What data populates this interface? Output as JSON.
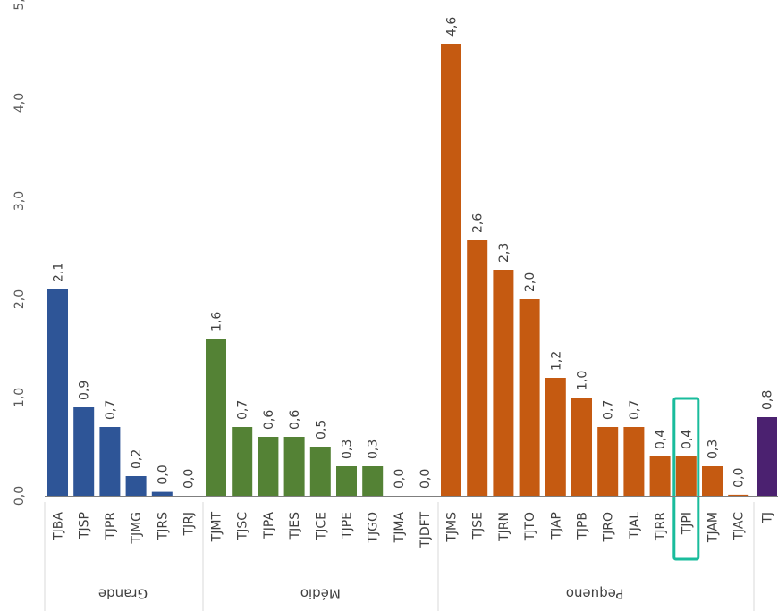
{
  "chart_data": {
    "type": "bar",
    "ylim": [
      0,
      5.0
    ],
    "yticks": [
      "0,0",
      "1,0",
      "2,0",
      "3,0",
      "4,0",
      "5,"
    ],
    "grid": false,
    "legend": "none",
    "colors": {
      "Grande": "#2e5597",
      "Médio": "#548235",
      "Pequeno": "#c55a11",
      "TJ": "#4b2170",
      "highlight": "#1abc9c",
      "tick": "#595959",
      "axis": "#7f7f7f"
    },
    "groups": [
      {
        "name": "Grande",
        "categories": [
          "TJBA",
          "TJSP",
          "TJPR",
          "TJMG",
          "TJRS",
          "TJRJ"
        ],
        "values": [
          2.1,
          0.9,
          0.7,
          0.2,
          0.04,
          0.0
        ],
        "labels": [
          "2,1",
          "0,9",
          "0,7",
          "0,2",
          "0,0",
          "0,0"
        ]
      },
      {
        "name": "Médio",
        "categories": [
          "TJMT",
          "TJSC",
          "TJPA",
          "TJES",
          "TJCE",
          "TJPE",
          "TJGO",
          "TJMA",
          "TJDFT"
        ],
        "values": [
          1.6,
          0.7,
          0.6,
          0.6,
          0.5,
          0.3,
          0.3,
          0.0,
          0.0
        ],
        "labels": [
          "1,6",
          "0,7",
          "0,6",
          "0,6",
          "0,5",
          "0,3",
          "0,3",
          "0,0",
          "0,0"
        ]
      },
      {
        "name": "Pequeno",
        "categories": [
          "TJMS",
          "TJSE",
          "TJRN",
          "TJTO",
          "TJAP",
          "TJPB",
          "TJRO",
          "TJAL",
          "TJRR",
          "TJPI",
          "TJAM",
          "TJAC"
        ],
        "values": [
          4.6,
          2.6,
          2.3,
          2.0,
          1.2,
          1.0,
          0.7,
          0.7,
          0.4,
          0.4,
          0.3,
          0.01
        ],
        "labels": [
          "4,6",
          "2,6",
          "2,3",
          "2,0",
          "1,2",
          "1,0",
          "0,7",
          "0,7",
          "0,4",
          "0,4",
          "0,3",
          "0,0"
        ]
      },
      {
        "name": "",
        "categories": [
          "TJ"
        ],
        "values": [
          0.8
        ],
        "labels": [
          "0,8"
        ]
      }
    ],
    "highlight": "TJPI"
  }
}
